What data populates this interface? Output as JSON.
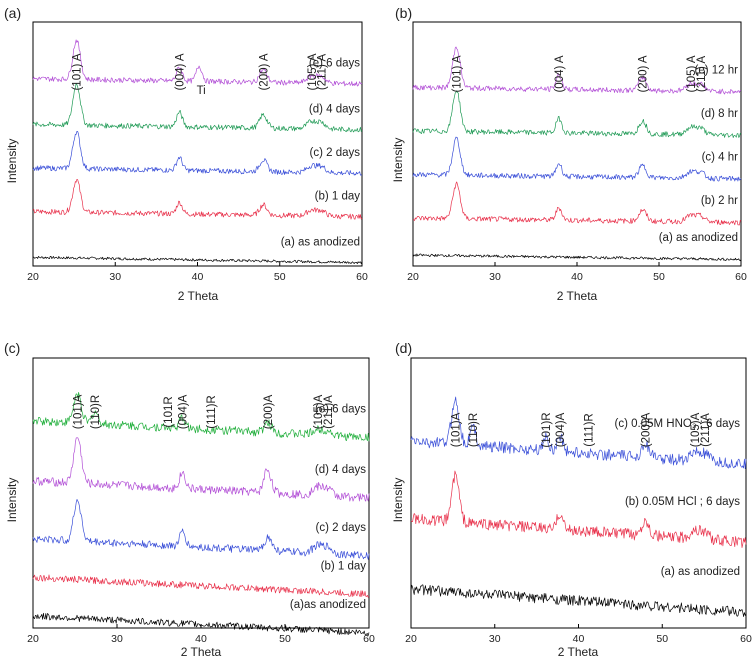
{
  "chart_data": [
    {
      "type": "line",
      "panel": "(a)",
      "xlabel": "2 Theta",
      "ylabel": "Intensity",
      "xlim": [
        20,
        60
      ],
      "xticks": [
        "20",
        "30",
        "40",
        "50",
        "60"
      ],
      "peak_labels": [
        {
          "text": "(101) A",
          "x": 25.3
        },
        {
          "text": "(004) A",
          "x": 37.8
        },
        {
          "text": "Ti",
          "x": 40.2
        },
        {
          "text": "(200) A",
          "x": 48.0
        },
        {
          "text": "(105) A",
          "x": 53.9
        },
        {
          "text": "(211) A",
          "x": 55.1
        }
      ],
      "series": [
        {
          "name": "(a) as anodized",
          "color": "#000000",
          "offset": 0.2,
          "noise": 0.06,
          "scale": 0.0,
          "extra": []
        },
        {
          "name": "(b) 1 day",
          "color": "#e8304a",
          "offset": 1.25,
          "noise": 0.12,
          "scale": 0.75,
          "extra": []
        },
        {
          "name": "(c) 2 days",
          "color": "#3a4fd8",
          "offset": 2.25,
          "noise": 0.12,
          "scale": 0.85,
          "extra": []
        },
        {
          "name": "(d) 4 days",
          "color": "#1f9a55",
          "offset": 3.25,
          "noise": 0.12,
          "scale": 0.95,
          "extra": []
        },
        {
          "name": "(e) 6 days",
          "color": "#b24fd6",
          "offset": 4.3,
          "noise": 0.12,
          "scale": 0.9,
          "extra": [
            {
              "x": 40.2,
              "h": 0.35
            }
          ]
        }
      ]
    },
    {
      "type": "line",
      "panel": "(b)",
      "xlabel": "2 Theta",
      "ylabel": "Intensity",
      "xlim": [
        20,
        60
      ],
      "xticks": [
        "20",
        "30",
        "40",
        "50",
        "60"
      ],
      "peak_labels": [
        {
          "text": "(101) A",
          "x": 25.3
        },
        {
          "text": "(004) A",
          "x": 37.8
        },
        {
          "text": "(200) A",
          "x": 48.0
        },
        {
          "text": "(105) A",
          "x": 53.9
        },
        {
          "text": "(211) A",
          "x": 55.1
        }
      ],
      "series": [
        {
          "name": "(a) as anodized",
          "color": "#000000",
          "offset": 0.25,
          "noise": 0.06,
          "scale": 0.0,
          "extra": []
        },
        {
          "name": "(b) 2 hr",
          "color": "#e8304a",
          "offset": 1.1,
          "noise": 0.12,
          "scale": 0.8,
          "extra": []
        },
        {
          "name": "(c) 4 hr",
          "color": "#3a4fd8",
          "offset": 2.1,
          "noise": 0.12,
          "scale": 0.85,
          "extra": []
        },
        {
          "name": "(d) 8 hr",
          "color": "#1f9a55",
          "offset": 3.1,
          "noise": 0.12,
          "scale": 0.95,
          "extra": []
        },
        {
          "name": "(e) 12 hr",
          "color": "#b24fd6",
          "offset": 4.1,
          "noise": 0.12,
          "scale": 0.95,
          "extra": []
        }
      ]
    },
    {
      "type": "line",
      "panel": "(c)",
      "xlabel": "2 Theta",
      "ylabel": "Intensity",
      "xlim": [
        20,
        60
      ],
      "xticks": [
        "20",
        "30",
        "40",
        "50",
        "60"
      ],
      "peak_labels": [
        {
          "text": "(101)A",
          "x": 25.3
        },
        {
          "text": "(110)R",
          "x": 27.4
        },
        {
          "text": "(101R",
          "x": 36.1
        },
        {
          "text": "(004)A",
          "x": 37.8
        },
        {
          "text": "(111)R",
          "x": 41.2
        },
        {
          "text": "(200)A",
          "x": 48.0
        },
        {
          "text": "(105)A",
          "x": 53.9
        },
        {
          "text": "(211)A",
          "x": 55.1
        }
      ],
      "series": [
        {
          "name": "(a)as anodized",
          "color": "#000000",
          "offset": 0.25,
          "noise": 0.14,
          "scale": 0.0,
          "extra": []
        },
        {
          "name": "(b) 1 day",
          "color": "#e8304a",
          "offset": 1.05,
          "noise": 0.14,
          "scale": 0.0,
          "extra": []
        },
        {
          "name": "(c) 2 days",
          "color": "#3a4fd8",
          "offset": 1.85,
          "noise": 0.16,
          "scale": 0.85,
          "extra": []
        },
        {
          "name": "(d) 4 days",
          "color": "#b24fd6",
          "offset": 3.05,
          "noise": 0.18,
          "scale": 0.95,
          "extra": [
            {
              "x": 47.8,
              "h": 0.2
            }
          ]
        },
        {
          "name": "(e) 6 days",
          "color": "#1fae3a",
          "offset": 4.3,
          "noise": 0.18,
          "scale": 0.6,
          "extra": [
            {
              "x": 27.4,
              "h": 0.25
            }
          ]
        }
      ]
    },
    {
      "type": "line",
      "panel": "(d)",
      "xlabel": "2 Theta",
      "ylabel": "Intensity",
      "xlim": [
        20,
        60
      ],
      "xticks": [
        "20",
        "30",
        "40",
        "50",
        "60"
      ],
      "peak_labels": [
        {
          "text": "(101)A",
          "x": 25.3
        },
        {
          "text": "(110)R",
          "x": 27.4
        },
        {
          "text": "(101)R",
          "x": 36.1
        },
        {
          "text": "(004)A",
          "x": 37.8
        },
        {
          "text": "(111)R",
          "x": 41.2
        },
        {
          "text": "(200)A",
          "x": 48.0
        },
        {
          "text": "(105)A",
          "x": 53.9
        },
        {
          "text": "(211)A",
          "x": 55.1
        }
      ],
      "series": [
        {
          "name": "(a) as anodized",
          "color": "#000000",
          "offset": 0.75,
          "noise": 0.2,
          "scale": 0.0,
          "extra": []
        },
        {
          "name": "(b) 0.05M HCl ; 6 days",
          "color": "#e8304a",
          "offset": 2.1,
          "noise": 0.22,
          "scale": 0.9,
          "extra": []
        },
        {
          "name": "(c) 0.05M HNO₃ ; 6 days",
          "color": "#3a4fd8",
          "offset": 3.6,
          "noise": 0.22,
          "scale": 0.85,
          "extra": [
            {
              "x": 27.4,
              "h": 0.35
            },
            {
              "x": 36.1,
              "h": 0.25
            }
          ]
        }
      ]
    }
  ]
}
